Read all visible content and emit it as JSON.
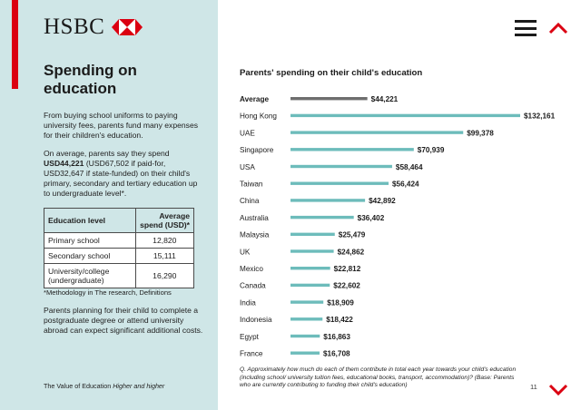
{
  "brand": {
    "name": "HSBC",
    "accent": "#db0011",
    "panel_bg": "#cfe6e7"
  },
  "left": {
    "heading": "Spending on education",
    "para1": "From buying school uniforms to paying university fees, parents fund many expenses for their children's education.",
    "para2_pre": "On average, parents say they spend ",
    "para2_bold": "USD44,221",
    "para2_post": " (USD67,502 if paid-for, USD32,647 if state-funded) on their child's primary, secondary and tertiary education up to undergraduate level*.",
    "table": {
      "headers": [
        "Education level",
        "Average spend (USD)*"
      ],
      "rows": [
        [
          "Primary school",
          "12,820"
        ],
        [
          "Secondary school",
          "15,111"
        ],
        [
          "University/college (undergraduate)",
          "16,290"
        ]
      ]
    },
    "methodology": "*Methodology in The research, Definitions",
    "para3": "Parents planning for their child to complete a postgraduate degree or attend university abroad can expect significant additional costs.",
    "footer_plain": "The Value of Education ",
    "footer_italic": "Higher and higher"
  },
  "nav": {
    "menu_icon": "hamburger-menu-icon",
    "up_icon": "chevron-up-icon",
    "down_icon": "chevron-down-icon",
    "page_number": "11"
  },
  "chart_data": {
    "type": "bar",
    "orientation": "horizontal",
    "title": "Parents' spending on their child's education",
    "categories": [
      "Average",
      "Hong Kong",
      "UAE",
      "Singapore",
      "USA",
      "Taiwan",
      "China",
      "Australia",
      "Malaysia",
      "UK",
      "Mexico",
      "Canada",
      "India",
      "Indonesia",
      "Egypt",
      "France"
    ],
    "values": [
      44221,
      132161,
      99378,
      70939,
      58464,
      56424,
      42892,
      36402,
      25479,
      24862,
      22812,
      22602,
      18909,
      18422,
      16863,
      16708
    ],
    "value_labels": [
      "$44,221",
      "$132,161",
      "$99,378",
      "$70,939",
      "$58,464",
      "$56,424",
      "$42,892",
      "$36,402",
      "$25,479",
      "$24,862",
      "$22,812",
      "$22,602",
      "$18,909",
      "$18,422",
      "$16,863",
      "$16,708"
    ],
    "highlight_category": "Average",
    "colors": {
      "bar": "#6dbcbb",
      "highlight": "#6e6e6e"
    },
    "xlabel": "",
    "ylabel": "",
    "grid": false
  },
  "chart_note": "Q. Approximately how much do each of them contribute in total each year towards your child's education (including school/ university tuition fees, educational books, transport, accommodation)? (Base: Parents who are currently contributing to funding their child's education)"
}
